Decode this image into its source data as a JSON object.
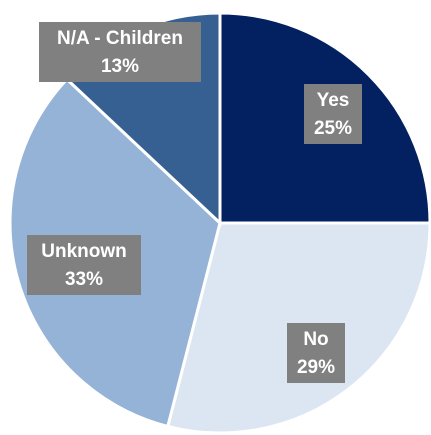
{
  "chart_data": {
    "type": "pie",
    "slices": [
      {
        "label": "Yes",
        "value": 25,
        "value_label": "25%",
        "color": "#032060"
      },
      {
        "label": "No",
        "value": 29,
        "value_label": "29%",
        "color": "#dce6f2"
      },
      {
        "label": "Unknown",
        "value": 33,
        "value_label": "33%",
        "color": "#95b3d7"
      },
      {
        "label": "N/A - Children",
        "value": 13,
        "value_label": "13%",
        "color": "#376092"
      }
    ],
    "start_angle_deg": 0,
    "direction": "clockwise",
    "legend": "none",
    "labels": "inside-boxes"
  }
}
